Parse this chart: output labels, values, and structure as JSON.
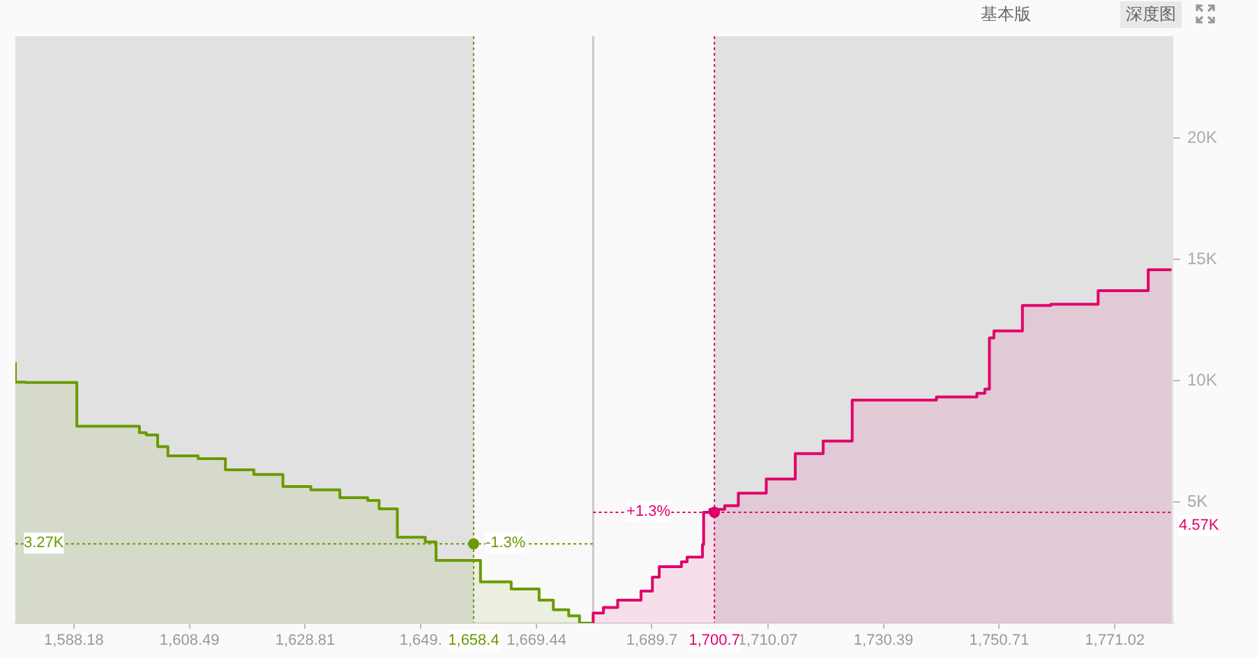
{
  "chart_data": {
    "type": "step",
    "xlim": [
      1577.9,
      1781.3
    ],
    "xticks": [
      {
        "value": 1588.18,
        "label": "1,588.18"
      },
      {
        "value": 1608.49,
        "label": "1,608.49"
      },
      {
        "value": 1628.81,
        "label": "1,628.81"
      },
      {
        "value": 1649.12,
        "label": "1,649."
      },
      {
        "value": 1669.44,
        "label": "1,669.44"
      },
      {
        "value": 1689.7,
        "label": "1,689.7"
      },
      {
        "value": 1710.07,
        "label": "1,710.07"
      },
      {
        "value": 1730.39,
        "label": "1,730.39"
      },
      {
        "value": 1750.71,
        "label": "1,750.71"
      },
      {
        "value": 1771.02,
        "label": "1,771.02"
      }
    ],
    "ylim": [
      0,
      24200
    ],
    "yticks": [
      {
        "value": 5000,
        "label": "5K"
      },
      {
        "value": 10000,
        "label": "10K"
      },
      {
        "value": 15000,
        "label": "15K"
      },
      {
        "value": 20000,
        "label": "20K"
      }
    ],
    "grid": false,
    "legend": false,
    "marker": "none",
    "series": [
      {
        "color": "#6a9a00",
        "x": [
          1577.9,
          1579.7,
          1588.7,
          1599.7,
          1600.9,
          1602.9,
          1604.7,
          1610.0,
          1614.8,
          1619.8,
          1624.9,
          1629.8,
          1634.9,
          1639.8,
          1641.8,
          1645.0,
          1649.9,
          1651.8,
          1659.6,
          1665.0,
          1669.9,
          1672.4,
          1675.1,
          1677.0,
          1679.3
        ],
        "values": [
          10760,
          9940,
          9920,
          8120,
          7850,
          7760,
          7280,
          6900,
          6780,
          6320,
          6130,
          5630,
          5500,
          5170,
          5060,
          4710,
          3540,
          3350,
          2590,
          1700,
          1410,
          950,
          550,
          300,
          0
        ]
      },
      {
        "color": "#e0006b",
        "x": [
          1679.4,
          1681.2,
          1683.7,
          1687.8,
          1689.8,
          1691.0,
          1694.9,
          1695.9,
          1698.6,
          1698.8,
          1699.9,
          1702.5,
          1704.9,
          1709.8,
          1714.9,
          1719.8,
          1724.9,
          1739.7,
          1746.8,
          1748.2,
          1749.0,
          1749.8,
          1754.8,
          1759.8,
          1768.1,
          1776.9,
          1779.8,
          1781.0
        ],
        "values": [
          0,
          420,
          650,
          950,
          1320,
          1900,
          2330,
          2530,
          2720,
          3240,
          4570,
          4690,
          4840,
          5360,
          5940,
          6990,
          7510,
          9200,
          9330,
          9480,
          9650,
          11760,
          12050,
          13100,
          13150,
          13710,
          14570,
          14570
        ]
      },
      {
        "type": "scatter",
        "marker": "circle",
        "color": "#6a9a00",
        "x": [
          1658.4
        ],
        "values": [
          3270
        ]
      },
      {
        "type": "scatter",
        "marker": "circle",
        "color": "#e0006b",
        "x": [
          1700.7
        ],
        "values": [
          4570
        ]
      }
    ],
    "bands": [
      {
        "axis": "x",
        "from": 1577.9,
        "to": 1658.4,
        "color": "#e1e1e1"
      },
      {
        "axis": "x",
        "from": 1700.7,
        "to": 1781.3,
        "color": "#e1e1e1"
      }
    ],
    "ref_lines": [
      {
        "axis": "x",
        "value": 1679.4,
        "label": null,
        "color": "#c8c8c8",
        "line_style": "solid"
      },
      {
        "axis": "x",
        "value": 1658.4,
        "label": "1,658.4",
        "color": "#6a9a00",
        "line_style": "dotted"
      },
      {
        "axis": "x",
        "value": 1700.7,
        "label": "1,700.7",
        "color": "#e0006b",
        "line_style": "dotted"
      },
      {
        "axis": "y",
        "value": 3270,
        "label": "3.27K",
        "color": "#6a9a00",
        "line_style": "dotted"
      },
      {
        "axis": "y",
        "value": 4570,
        "label": "4.57K",
        "color": "#e0006b",
        "line_style": "dotted"
      }
    ],
    "annotations": [
      "基本版",
      "深度图",
      {
        "text": "-1.3%",
        "x": 1664.0,
        "y": 3270
      },
      {
        "text": "+1.3%",
        "x": 1689.1,
        "y": 4570
      }
    ]
  }
}
